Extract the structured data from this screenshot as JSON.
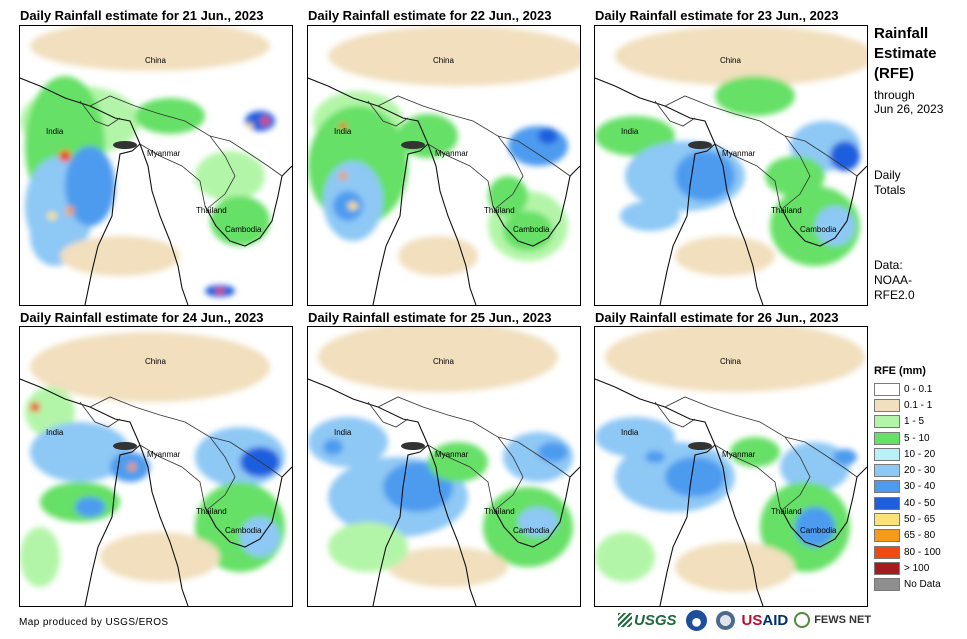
{
  "panels": [
    {
      "title": "Daily Rainfall estimate for 21 Jun., 2023",
      "labels": {
        "china": "China",
        "india": "India",
        "myanmar": "Myanmar",
        "thailand": "Thailand",
        "cambodia": "Cambodia"
      }
    },
    {
      "title": "Daily Rainfall estimate for 22 Jun., 2023",
      "labels": {
        "china": "China",
        "india": "India",
        "myanmar": "Myanmar",
        "thailand": "Thailand",
        "cambodia": "Cambodia"
      }
    },
    {
      "title": "Daily Rainfall estimate for 23 Jun., 2023",
      "labels": {
        "china": "China",
        "india": "India",
        "myanmar": "Myanmar",
        "thailand": "Thailand",
        "cambodia": "Cambodia"
      }
    },
    {
      "title": "Daily Rainfall estimate for 24 Jun., 2023",
      "labels": {
        "china": "China",
        "india": "India",
        "myanmar": "Myanmar",
        "thailand": "Thailand",
        "cambodia": "Cambodia"
      }
    },
    {
      "title": "Daily Rainfall estimate for 25 Jun., 2023",
      "labels": {
        "china": "China",
        "india": "India",
        "myanmar": "Myanmar",
        "thailand": "Thailand",
        "cambodia": "Cambodia"
      }
    },
    {
      "title": "Daily Rainfall estimate for 26 Jun., 2023",
      "labels": {
        "china": "China",
        "india": "India",
        "myanmar": "Myanmar",
        "thailand": "Thailand",
        "cambodia": "Cambodia"
      }
    }
  ],
  "sidebar": {
    "title_line1": "Rainfall",
    "title_line2": "Estimate",
    "title_line3": "(RFE)",
    "through_line1": "through",
    "through_line2": "Jun 26, 2023",
    "daily_line1": "Daily",
    "daily_line2": "Totals",
    "data_line1": "Data:",
    "data_line2": "NOAA-",
    "data_line3": "RFE2.0"
  },
  "legend": {
    "title": "RFE (mm)",
    "items": [
      {
        "label": "0 - 0.1",
        "color": "#ffffff"
      },
      {
        "label": "0.1 - 1",
        "color": "#f1dfbe"
      },
      {
        "label": "1 - 5",
        "color": "#b3f5a8"
      },
      {
        "label": "5 - 10",
        "color": "#66e066"
      },
      {
        "label": "10 - 20",
        "color": "#b7f0f7"
      },
      {
        "label": "20 - 30",
        "color": "#8ec8f5"
      },
      {
        "label": "30 - 40",
        "color": "#4d9bef"
      },
      {
        "label": "40 - 50",
        "color": "#1f5fde"
      },
      {
        "label": "50 - 65",
        "color": "#fbe37a"
      },
      {
        "label": "65 - 80",
        "color": "#f59a1a"
      },
      {
        "label": "80 - 100",
        "color": "#f04a10"
      },
      {
        "label": "> 100",
        "color": "#a51c20"
      },
      {
        "label": "No Data",
        "color": "#8e8e8e"
      }
    ]
  },
  "footer": {
    "credit": "Map produced by USGS/EROS",
    "usgs": "USGS",
    "usaid_u": "US",
    "usaid_rest": "AID",
    "fews": "FEWS NET"
  }
}
